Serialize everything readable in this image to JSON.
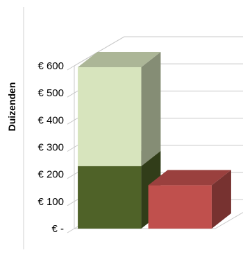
{
  "chart_data": {
    "type": "bar",
    "subtype": "3d-stacked-column",
    "categories": [
      "",
      ""
    ],
    "series": [
      {
        "values": [
          230,
          160
        ],
        "colors": [
          "#4f6228",
          "#c0504d"
        ]
      },
      {
        "values": [
          365,
          0
        ],
        "colors": [
          "#d7e4bd",
          "#d7e4bd"
        ]
      }
    ],
    "ylabel": "Duizenden",
    "ylim": [
      0,
      600
    ],
    "yticks": [
      0,
      100,
      200,
      300,
      400,
      500,
      600
    ],
    "ytick_labels": [
      "€ -",
      "€ 100",
      "€ 200",
      "€ 300",
      "€ 400",
      "€ 500",
      "€ 600"
    ],
    "grid": true,
    "legend": "none"
  }
}
